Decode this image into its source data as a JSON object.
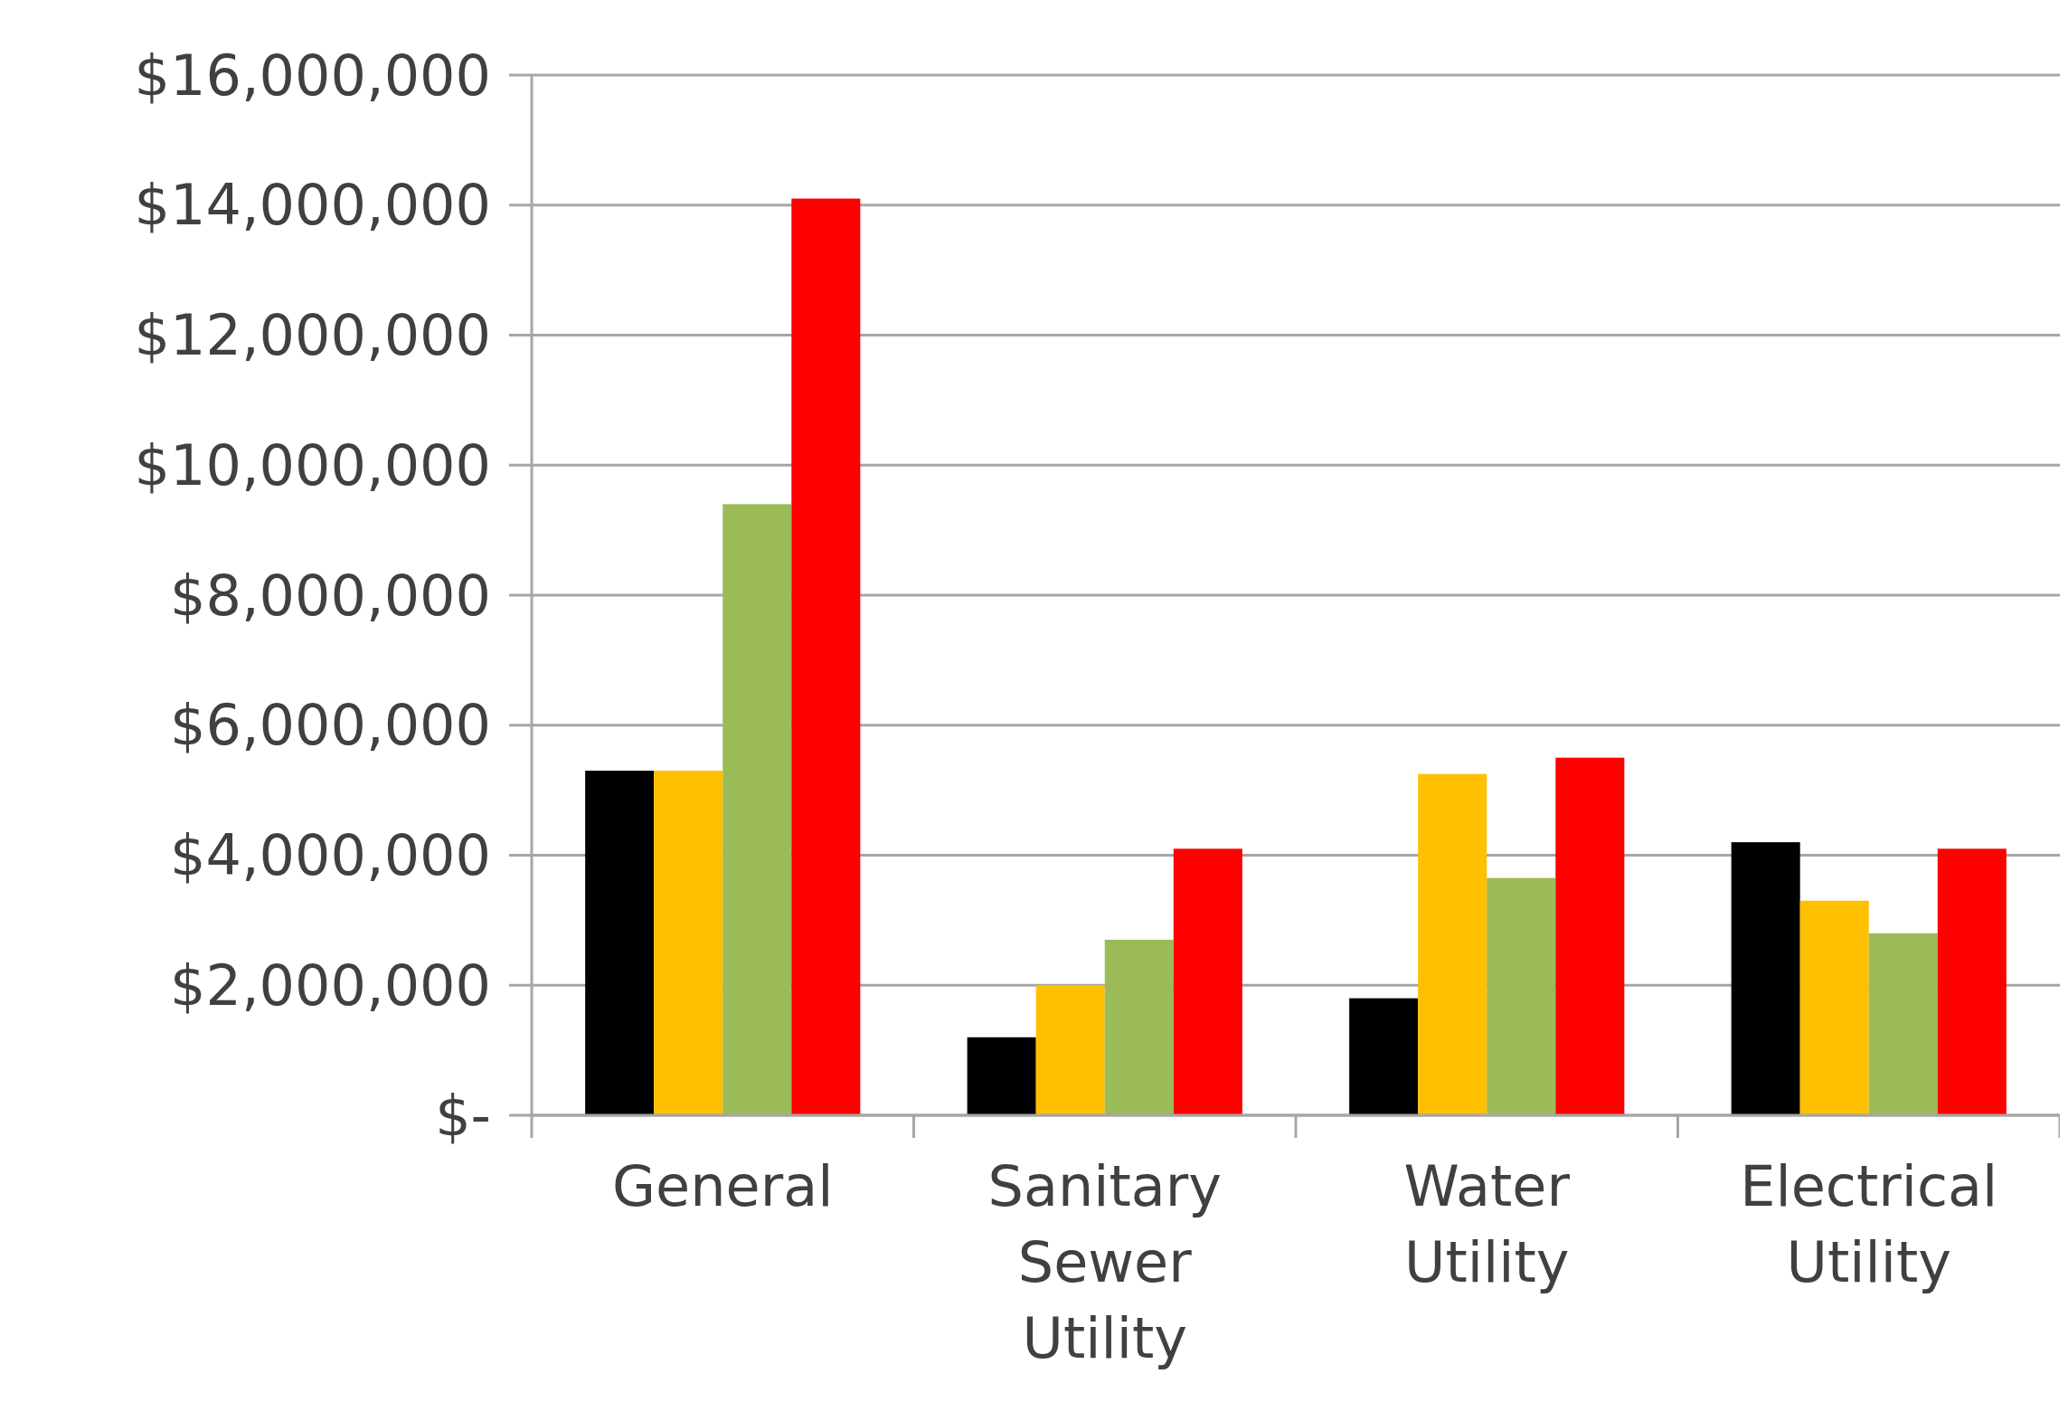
{
  "chart_data": {
    "type": "bar",
    "categories": [
      "General",
      "Sanitary Sewer Utility",
      "Water Utility",
      "Electrical Utility"
    ],
    "series": [
      {
        "color": "#000000",
        "values": [
          5300000,
          1200000,
          1800000,
          4200000
        ]
      },
      {
        "color": "#ffc000",
        "values": [
          5300000,
          2000000,
          5250000,
          3300000
        ]
      },
      {
        "color": "#9bbb59",
        "values": [
          9400000,
          2700000,
          3650000,
          2800000
        ]
      },
      {
        "color": "#ff0000",
        "values": [
          14100000,
          4100000,
          5500000,
          4100000
        ]
      }
    ],
    "ylim": [
      0,
      16000000
    ],
    "yticks": [
      {
        "value": 0,
        "label": "$-"
      },
      {
        "value": 2000000,
        "label": "$2,000,000"
      },
      {
        "value": 4000000,
        "label": "$4,000,000"
      },
      {
        "value": 6000000,
        "label": "$6,000,000"
      },
      {
        "value": 8000000,
        "label": "$8,000,000"
      },
      {
        "value": 10000000,
        "label": "$10,000,000"
      },
      {
        "value": 12000000,
        "label": "$12,000,000"
      },
      {
        "value": 14000000,
        "label": "$14,000,000"
      },
      {
        "value": 16000000,
        "label": "$16,000,000"
      }
    ],
    "grid": "y"
  }
}
